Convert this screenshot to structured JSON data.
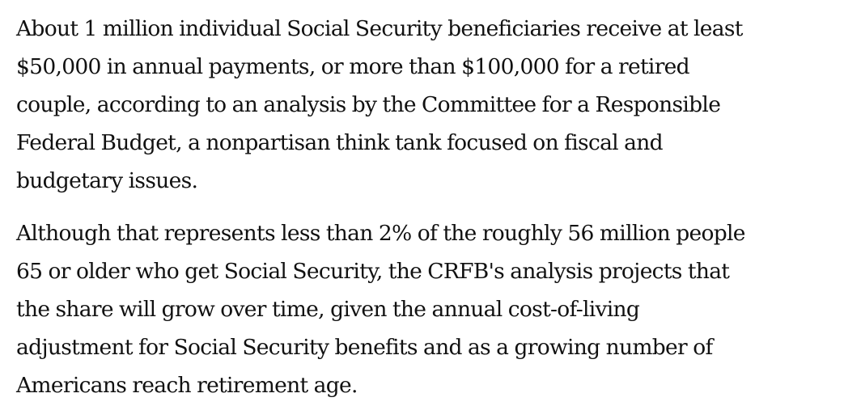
{
  "article": {
    "paragraphs": [
      {
        "lines": [
          "About 1 million individual Social Security beneficiaries receive at least",
          "$50,000 in annual payments, or more than $100,000 for a retired",
          "couple, according to an analysis by the Committee for a Responsible",
          "Federal Budget, a nonpartisan think tank focused on fiscal and",
          "budgetary issues."
        ]
      },
      {
        "lines": [
          "Although that represents less than 2% of the roughly 56 million people",
          "65 or older who get Social Security, the CRFB's analysis projects that",
          "the share will grow over time, given the annual cost-of-living",
          "adjustment for Social Security benefits and as a growing number of",
          "Americans reach retirement age."
        ]
      }
    ]
  }
}
